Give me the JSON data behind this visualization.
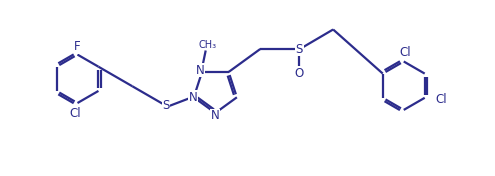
{
  "bg_color": "#ffffff",
  "line_color": "#2c2c8c",
  "line_width": 1.6,
  "font_size": 8.5,
  "fig_width": 4.95,
  "fig_height": 1.76,
  "dpi": 100,
  "xlim": [
    0,
    10.5
  ],
  "ylim": [
    0,
    3.8
  ]
}
